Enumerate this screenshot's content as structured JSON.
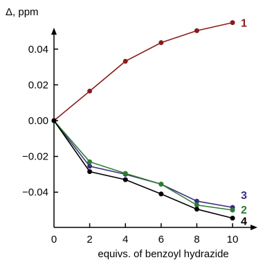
{
  "chart_data": {
    "type": "line",
    "xlabel": "equivs. of benzoyl hydrazide",
    "ylabel": "Δ, ppm",
    "xlim": [
      0,
      11
    ],
    "ylim": [
      -0.06,
      0.06
    ],
    "x_ticks": [
      0,
      2,
      4,
      6,
      8,
      10
    ],
    "y_ticks": [
      0.04,
      0.02,
      0.0,
      -0.02,
      -0.04
    ],
    "y_tick_labels": [
      "0.04",
      "0.02",
      "0.00",
      "−0.02",
      "−0.04"
    ],
    "grid": false,
    "legend": "none",
    "series": [
      {
        "name": "1",
        "color": "#8b1a1a",
        "x": [
          0,
          2,
          4,
          6,
          8,
          10
        ],
        "y": [
          0.0,
          0.0165,
          0.0332,
          0.0436,
          0.0503,
          0.0548
        ]
      },
      {
        "name": "3",
        "color": "#3b2f7a",
        "x": [
          0,
          2,
          4,
          6,
          8,
          10
        ],
        "y": [
          0.0,
          -0.0255,
          -0.03,
          -0.0355,
          -0.045,
          -0.0485
        ]
      },
      {
        "name": "2",
        "color": "#2e7d32",
        "x": [
          0,
          2,
          4,
          6,
          8,
          10
        ],
        "y": [
          0.0,
          -0.023,
          -0.0295,
          -0.0355,
          -0.0472,
          -0.05
        ]
      },
      {
        "name": "4",
        "color": "#000000",
        "x": [
          0,
          2,
          4,
          6,
          8,
          10
        ],
        "y": [
          0.0,
          -0.0285,
          -0.033,
          -0.041,
          -0.0495,
          -0.0545
        ]
      }
    ]
  }
}
